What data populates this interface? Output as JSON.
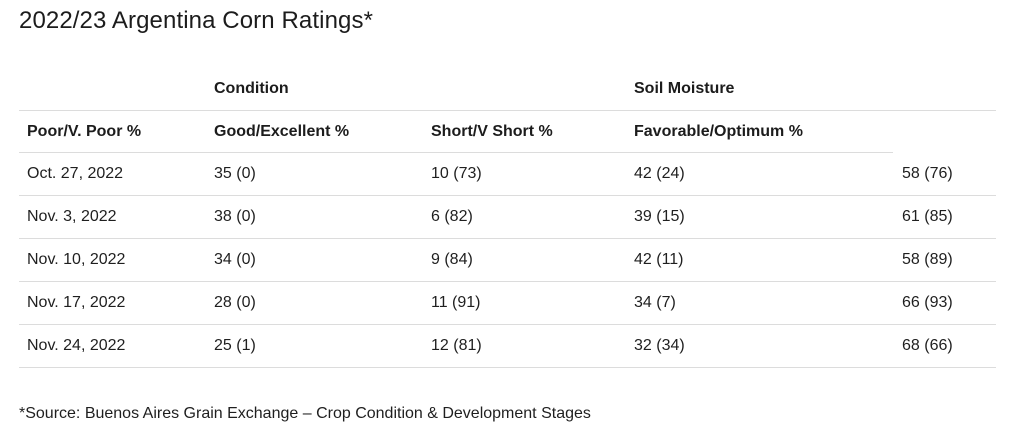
{
  "title": "2022/23 Argentina Corn Ratings*",
  "groups": {
    "condition": "Condition",
    "soil_moisture": "Soil Moisture"
  },
  "headers": [
    "Poor/V. Poor %",
    "Good/Excellent %",
    "Short/V Short %",
    "Favorable/Optimum %"
  ],
  "rows": [
    [
      "Oct. 27, 2022",
      "35 (0)",
      "10 (73)",
      "42 (24)",
      "58 (76)"
    ],
    [
      "Nov. 3, 2022",
      "38 (0)",
      "6 (82)",
      "39 (15)",
      "61 (85)"
    ],
    [
      "Nov. 10, 2022",
      "34 (0)",
      "9 (84)",
      "42 (11)",
      "58 (89)"
    ],
    [
      "Nov. 17, 2022",
      "28 (0)",
      "11 (91)",
      "34 (7)",
      "66 (93)"
    ],
    [
      "Nov. 24, 2022",
      "25 (1)",
      "12 (81)",
      "32 (34)",
      "68 (66)"
    ]
  ],
  "footnote": "*Source: Buenos Aires Grain Exchange – Crop Condition & Development Stages"
}
